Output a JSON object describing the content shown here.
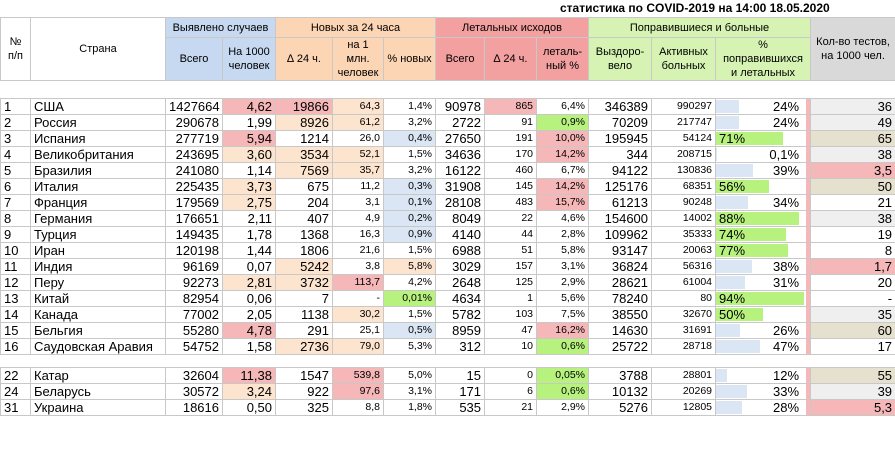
{
  "title": "статистика по COVID-2019 на 14:00 18.05.2020",
  "headers": {
    "num": "№ п/п",
    "country": "Страна",
    "cases_group": "Выявлено случаев",
    "cases_total": "Всего",
    "cases_per1000": "На 1000 человек",
    "new_group": "Новых за 24 часа",
    "new_delta": "∆ 24 ч.",
    "new_per_mln": "на 1 млн. человек",
    "new_pct": "% новых",
    "deaths_group": "Летальных исходов",
    "deaths_total": "Всего",
    "deaths_delta": "∆ 24 ч.",
    "deaths_pct": "леталь-ный %",
    "rec_group": "Поправившиеся и больные",
    "recovered": "Выздоро-вело",
    "active": "Активных больных",
    "rec_pct": "% поправившихся и летальных",
    "tests": "Кол-во тестов, на 1000 чел."
  },
  "rows": [
    {
      "n": "1",
      "country": "США",
      "total": "1427664",
      "p1000": "4,62",
      "d24": "19866",
      "pmln": "64,3",
      "pnew": "1,4%",
      "deaths": "90978",
      "dd24": "865",
      "lethal": "6,4%",
      "rec": "346389",
      "active": "990297",
      "rp": "24%",
      "rpf": 0.24,
      "tests": "36"
    },
    {
      "n": "2",
      "country": "Россия",
      "total": "290678",
      "p1000": "1,99",
      "d24": "8926",
      "pmln": "61,2",
      "pnew": "3,2%",
      "deaths": "2722",
      "dd24": "91",
      "lethal": "0,9%",
      "rec": "70209",
      "active": "217747",
      "rp": "24%",
      "rpf": 0.24,
      "tests": "49"
    },
    {
      "n": "3",
      "country": "Испания",
      "total": "277719",
      "p1000": "5,94",
      "d24": "1214",
      "pmln": "26,0",
      "pnew": "0,4%",
      "deaths": "27650",
      "dd24": "191",
      "lethal": "10,0%",
      "rec": "195945",
      "active": "54124",
      "rp": "71%",
      "rpf": 0.71,
      "tests": "65"
    },
    {
      "n": "4",
      "country": "Великобритания",
      "total": "243695",
      "p1000": "3,60",
      "d24": "3534",
      "pmln": "52,1",
      "pnew": "1,5%",
      "deaths": "34636",
      "dd24": "170",
      "lethal": "14,2%",
      "rec": "344",
      "active": "208715",
      "rp": "0,1%",
      "rpf": 0.001,
      "tests": "38"
    },
    {
      "n": "5",
      "country": "Бразилия",
      "total": "241080",
      "p1000": "1,14",
      "d24": "7569",
      "pmln": "35,7",
      "pnew": "3,2%",
      "deaths": "16122",
      "dd24": "460",
      "lethal": "6,7%",
      "rec": "94122",
      "active": "130836",
      "rp": "39%",
      "rpf": 0.39,
      "tests": "3,5"
    },
    {
      "n": "6",
      "country": "Италия",
      "total": "225435",
      "p1000": "3,73",
      "d24": "675",
      "pmln": "11,2",
      "pnew": "0,3%",
      "deaths": "31908",
      "dd24": "145",
      "lethal": "14,2%",
      "rec": "125176",
      "active": "68351",
      "rp": "56%",
      "rpf": 0.56,
      "tests": "50"
    },
    {
      "n": "7",
      "country": "Франция",
      "total": "179569",
      "p1000": "2,75",
      "d24": "204",
      "pmln": "3,1",
      "pnew": "0,1%",
      "deaths": "28108",
      "dd24": "483",
      "lethal": "15,7%",
      "rec": "61213",
      "active": "90248",
      "rp": "34%",
      "rpf": 0.34,
      "tests": "21"
    },
    {
      "n": "8",
      "country": "Германия",
      "total": "176651",
      "p1000": "2,11",
      "d24": "407",
      "pmln": "4,9",
      "pnew": "0,2%",
      "deaths": "8049",
      "dd24": "22",
      "lethal": "4,6%",
      "rec": "154600",
      "active": "14002",
      "rp": "88%",
      "rpf": 0.88,
      "tests": "38"
    },
    {
      "n": "9",
      "country": "Турция",
      "total": "149435",
      "p1000": "1,78",
      "d24": "1368",
      "pmln": "16,3",
      "pnew": "0,9%",
      "deaths": "4140",
      "dd24": "44",
      "lethal": "2,8%",
      "rec": "109962",
      "active": "35333",
      "rp": "74%",
      "rpf": 0.74,
      "tests": "19"
    },
    {
      "n": "10",
      "country": "Иран",
      "total": "120198",
      "p1000": "1,44",
      "d24": "1806",
      "pmln": "21,6",
      "pnew": "1,5%",
      "deaths": "6988",
      "dd24": "51",
      "lethal": "5,8%",
      "rec": "93147",
      "active": "20063",
      "rp": "77%",
      "rpf": 0.77,
      "tests": "8"
    },
    {
      "n": "11",
      "country": "Индия",
      "total": "96169",
      "p1000": "0,07",
      "d24": "5242",
      "pmln": "3,8",
      "pnew": "5,8%",
      "deaths": "3029",
      "dd24": "157",
      "lethal": "3,1%",
      "rec": "36824",
      "active": "56316",
      "rp": "38%",
      "rpf": 0.38,
      "tests": "1,7"
    },
    {
      "n": "12",
      "country": "Перу",
      "total": "92273",
      "p1000": "2,81",
      "d24": "3732",
      "pmln": "113,7",
      "pnew": "4,2%",
      "deaths": "2648",
      "dd24": "125",
      "lethal": "2,9%",
      "rec": "28621",
      "active": "61004",
      "rp": "31%",
      "rpf": 0.31,
      "tests": "20"
    },
    {
      "n": "13",
      "country": "Китай",
      "total": "82954",
      "p1000": "0,06",
      "d24": "7",
      "pmln": "-",
      "pnew": "0,01%",
      "deaths": "4634",
      "dd24": "1",
      "lethal": "5,6%",
      "rec": "78240",
      "active": "80",
      "rp": "94%",
      "rpf": 0.94,
      "tests": "-"
    },
    {
      "n": "14",
      "country": "Канада",
      "total": "77002",
      "p1000": "2,05",
      "d24": "1138",
      "pmln": "30,2",
      "pnew": "1,5%",
      "deaths": "5782",
      "dd24": "103",
      "lethal": "7,5%",
      "rec": "38550",
      "active": "32670",
      "rp": "50%",
      "rpf": 0.5,
      "tests": "35"
    },
    {
      "n": "15",
      "country": "Бельгия",
      "total": "55280",
      "p1000": "4,78",
      "d24": "291",
      "pmln": "25,1",
      "pnew": "0,5%",
      "deaths": "8959",
      "dd24": "47",
      "lethal": "16,2%",
      "rec": "14630",
      "active": "31691",
      "rp": "26%",
      "rpf": 0.26,
      "tests": "60"
    },
    {
      "n": "16",
      "country": "Саудовская Аравия",
      "total": "54752",
      "p1000": "1,58",
      "d24": "2736",
      "pmln": "79,0",
      "pnew": "5,3%",
      "deaths": "312",
      "dd24": "10",
      "lethal": "0,6%",
      "rec": "25722",
      "active": "28718",
      "rp": "47%",
      "rpf": 0.47,
      "tests": "17"
    }
  ],
  "rows2": [
    {
      "n": "22",
      "country": "Катар",
      "total": "32604",
      "p1000": "11,38",
      "d24": "1547",
      "pmln": "539,8",
      "pnew": "5,0%",
      "deaths": "15",
      "dd24": "0",
      "lethal": "0,05%",
      "rec": "3788",
      "active": "28801",
      "rp": "12%",
      "rpf": 0.12,
      "tests": "55"
    },
    {
      "n": "24",
      "country": "Беларусь",
      "total": "30572",
      "p1000": "3,24",
      "d24": "922",
      "pmln": "97,6",
      "pnew": "3,1%",
      "deaths": "171",
      "dd24": "6",
      "lethal": "0,6%",
      "rec": "10132",
      "active": "20269",
      "rp": "33%",
      "rpf": 0.33,
      "tests": "39"
    },
    {
      "n": "31",
      "country": "Украина",
      "total": "18616",
      "p1000": "0,50",
      "d24": "325",
      "pmln": "8,8",
      "pnew": "1,8%",
      "deaths": "535",
      "dd24": "21",
      "lethal": "2,9%",
      "rec": "5276",
      "active": "12805",
      "rp": "28%",
      "rpf": 0.28,
      "tests": "5,3"
    }
  ],
  "colors": {
    "blue": "#c6d9f1",
    "orange": "#fcd5b4",
    "red": "#f2a0a0",
    "green": "#d6f3b3",
    "gray": "#d9d9d9",
    "bar_blue": "#dbe6f4",
    "bar_green": "#b8f27e",
    "bar_red": "#f5b7b7",
    "bar_orange": "#fce4cf"
  }
}
